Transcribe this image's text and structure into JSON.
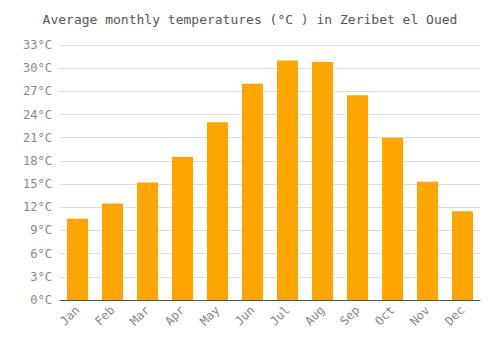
{
  "chart_data": {
    "type": "bar",
    "title": "Average monthly temperatures (°C ) in Zeribet el Oued",
    "categories": [
      "Jan",
      "Feb",
      "Mar",
      "Apr",
      "May",
      "Jun",
      "Jul",
      "Aug",
      "Sep",
      "Oct",
      "Nov",
      "Dec"
    ],
    "values": [
      10.5,
      12.5,
      15.2,
      18.5,
      23.0,
      28.0,
      31.0,
      30.8,
      26.5,
      21.0,
      15.3,
      11.5
    ],
    "color": "#FFA500",
    "ylim": [
      0,
      33
    ],
    "yticks": [
      {
        "value": 0,
        "label": "0°C"
      },
      {
        "value": 3,
        "label": "3°C"
      },
      {
        "value": 6,
        "label": "6°C"
      },
      {
        "value": 9,
        "label": "9°C"
      },
      {
        "value": 12,
        "label": "12°C"
      },
      {
        "value": 15,
        "label": "15°C"
      },
      {
        "value": 18,
        "label": "18°C"
      },
      {
        "value": 21,
        "label": "21°C"
      },
      {
        "value": 24,
        "label": "24°C"
      },
      {
        "value": 27,
        "label": "27°C"
      },
      {
        "value": 30,
        "label": "30°C"
      },
      {
        "value": 33,
        "label": "33°C"
      }
    ],
    "grid": true
  }
}
